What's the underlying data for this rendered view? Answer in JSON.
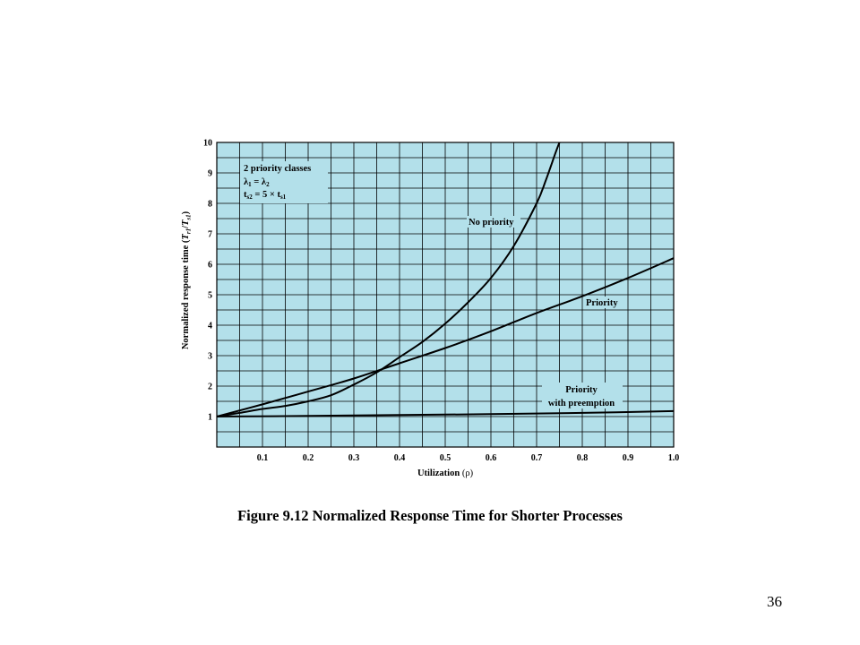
{
  "chart_data": {
    "type": "line",
    "xlabel": "Utilization",
    "xlabel_symbol": "ρ",
    "ylabel": "Normalized response time",
    "ylabel_ratio": {
      "num": "T",
      "num_sub": "r1",
      "den": "T",
      "den_sub": "s1"
    },
    "xlim": [
      0,
      1.0
    ],
    "ylim": [
      0,
      10
    ],
    "x_ticks": [
      "0.1",
      "0.2",
      "0.3",
      "0.4",
      "0.5",
      "0.6",
      "0.7",
      "0.8",
      "0.9",
      "1.0"
    ],
    "y_ticks": [
      "1",
      "2",
      "3",
      "4",
      "5",
      "6",
      "7",
      "8",
      "9",
      "10"
    ],
    "grid": true,
    "plot_background": "#b3e0ea",
    "series": [
      {
        "name": "No priority",
        "x": [
          0.0,
          0.05,
          0.1,
          0.15,
          0.2,
          0.25,
          0.3,
          0.35,
          0.4,
          0.45,
          0.5,
          0.55,
          0.6,
          0.65,
          0.7,
          0.72,
          0.74,
          0.75
        ],
        "y": [
          1.0,
          1.12,
          1.25,
          1.35,
          1.5,
          1.7,
          2.05,
          2.45,
          2.95,
          3.45,
          4.05,
          4.75,
          5.55,
          6.6,
          8.0,
          8.75,
          9.6,
          10.0
        ]
      },
      {
        "name": "Priority",
        "x": [
          0.0,
          0.1,
          0.2,
          0.3,
          0.4,
          0.5,
          0.6,
          0.7,
          0.8,
          0.9,
          1.0
        ],
        "y": [
          1.0,
          1.4,
          1.82,
          2.25,
          2.75,
          3.25,
          3.8,
          4.4,
          4.95,
          5.55,
          6.2
        ]
      },
      {
        "name": "Priority with preemption",
        "x": [
          0.0,
          0.2,
          0.4,
          0.6,
          0.8,
          1.0
        ],
        "y": [
          1.0,
          1.02,
          1.05,
          1.08,
          1.12,
          1.18
        ]
      }
    ],
    "series_labels": {
      "no_priority": "No priority",
      "priority": "Priority",
      "preemption_line1": "Priority",
      "preemption_line2": "with preemption"
    },
    "annotation": {
      "line1": "2 priority classes",
      "line2": {
        "a": "λ",
        "a_sub": "1",
        "eq": " = ",
        "b": "λ",
        "b_sub": "2"
      },
      "line3": {
        "a": "t",
        "a_sub": "s2",
        "eq": " = 5 × ",
        "b": "t",
        "b_sub": "s1"
      }
    }
  },
  "caption": "Figure 9.12 Normalized Response Time for Shorter Processes",
  "page_number": "36"
}
